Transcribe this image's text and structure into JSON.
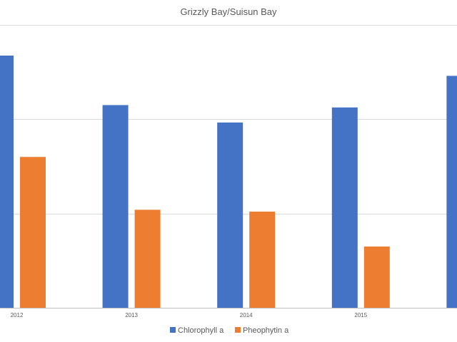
{
  "chart_data": {
    "type": "bar",
    "title": "Grizzly Bay/Suisun Bay",
    "categories": [
      "2012",
      "2013",
      "2014",
      "2015",
      ""
    ],
    "series": [
      {
        "name": "Chlorophyll a",
        "color": "#4472C4",
        "values": [
          5.35,
          4.3,
          3.93,
          4.25,
          4.92
        ]
      },
      {
        "name": "Pheophytin a",
        "color": "#ED7D31",
        "values": [
          3.2,
          2.08,
          2.04,
          1.3,
          null
        ]
      }
    ],
    "ylim": [
      0,
      6
    ],
    "grid": true,
    "legend": "bottom"
  }
}
